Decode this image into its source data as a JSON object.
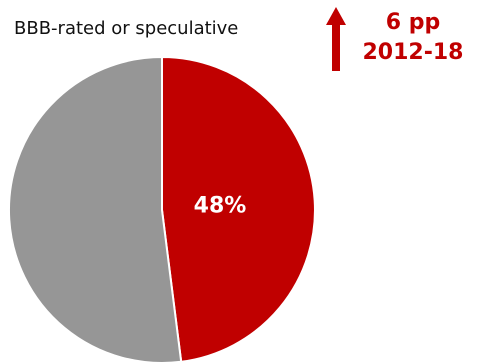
{
  "chart_data": {
    "type": "pie",
    "title": "BBB-rated or speculative",
    "slices": [
      {
        "value": 48,
        "label": "48%",
        "color": "#c00000"
      },
      {
        "value": 52,
        "label": "",
        "color": "#969696"
      }
    ],
    "annotation": {
      "arrow": "up",
      "line1": "6 pp",
      "line2": "2012-18",
      "color": "#c00000"
    }
  }
}
